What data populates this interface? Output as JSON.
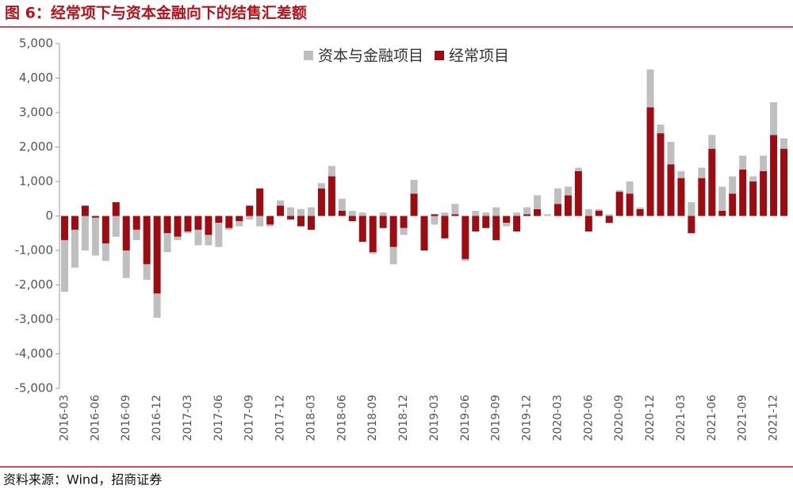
{
  "title": "图 6：经常项下与资本金融向下的结售汇差额",
  "source": "资料来源：Wind，招商证券",
  "chart_data": {
    "type": "stacked_bar",
    "categories": [
      "2016-03",
      null,
      null,
      "2016-06",
      null,
      null,
      "2016-09",
      null,
      null,
      "2016-12",
      null,
      null,
      "2017-03",
      null,
      null,
      "2017-06",
      null,
      null,
      "2017-09",
      null,
      null,
      "2017-12",
      null,
      null,
      "2018-03",
      null,
      null,
      "2018-06",
      null,
      null,
      "2018-09",
      null,
      null,
      "2018-12",
      null,
      null,
      "2019-03",
      null,
      null,
      "2019-06",
      null,
      null,
      "2019-09",
      null,
      null,
      "2019-12",
      null,
      null,
      "2020-03",
      null,
      null,
      "2020-06",
      null,
      null,
      "2020-09",
      null,
      null,
      "2020-12",
      null,
      null,
      "2021-03",
      null,
      null,
      "2021-06",
      null,
      null,
      "2021-09",
      null,
      null,
      "2021-12",
      null
    ],
    "series": [
      {
        "name": "经常项目",
        "color": "#9b0d12",
        "values": [
          -700,
          -400,
          300,
          -50,
          -800,
          400,
          -1000,
          -400,
          -1400,
          -2250,
          -500,
          -600,
          -450,
          -400,
          -550,
          -200,
          -350,
          -150,
          300,
          800,
          -250,
          300,
          -100,
          -300,
          -400,
          800,
          1150,
          150,
          -150,
          -750,
          -1050,
          -350,
          -900,
          -350,
          650,
          -1000,
          50,
          -650,
          50,
          -1250,
          -450,
          -350,
          -700,
          -200,
          -450,
          50,
          200,
          0,
          350,
          600,
          1300,
          -450,
          150,
          -200,
          700,
          650,
          200,
          3150,
          2400,
          1500,
          1100,
          -500,
          1100,
          1950,
          150,
          650,
          1350,
          1000,
          1300,
          2350,
          1950
        ]
      },
      {
        "name": "资本与金融项目",
        "color": "#bfbfbf",
        "values": [
          -1500,
          -1100,
          -1000,
          -1100,
          -500,
          -600,
          -800,
          -300,
          -450,
          -700,
          -550,
          -100,
          -50,
          -450,
          -300,
          -700,
          -50,
          -150,
          -100,
          -300,
          -50,
          150,
          250,
          200,
          250,
          150,
          300,
          350,
          150,
          100,
          -50,
          100,
          -500,
          -200,
          400,
          0,
          -250,
          100,
          300,
          -50,
          150,
          100,
          250,
          -100,
          100,
          200,
          400,
          50,
          450,
          250,
          100,
          200,
          50,
          50,
          50,
          350,
          50,
          1100,
          250,
          650,
          200,
          400,
          300,
          400,
          700,
          500,
          400,
          150,
          450,
          950,
          300
        ]
      }
    ],
    "ylim": [
      -5000,
      5000
    ],
    "yticks": [
      {
        "value": -5000,
        "label": "-5,000"
      },
      {
        "value": -4000,
        "label": "-4,000"
      },
      {
        "value": -3000,
        "label": "-3,000"
      },
      {
        "value": -2000,
        "label": "-2,000"
      },
      {
        "value": -1000,
        "label": "-1,000"
      },
      0,
      {
        "value": 1000,
        "label": "1,000"
      },
      {
        "value": 2000,
        "label": "2,000"
      },
      {
        "value": 3000,
        "label": "3,000"
      },
      {
        "value": 4000,
        "label": "4,000"
      },
      {
        "value": 5000,
        "label": "5,000"
      }
    ],
    "legend": "top"
  }
}
